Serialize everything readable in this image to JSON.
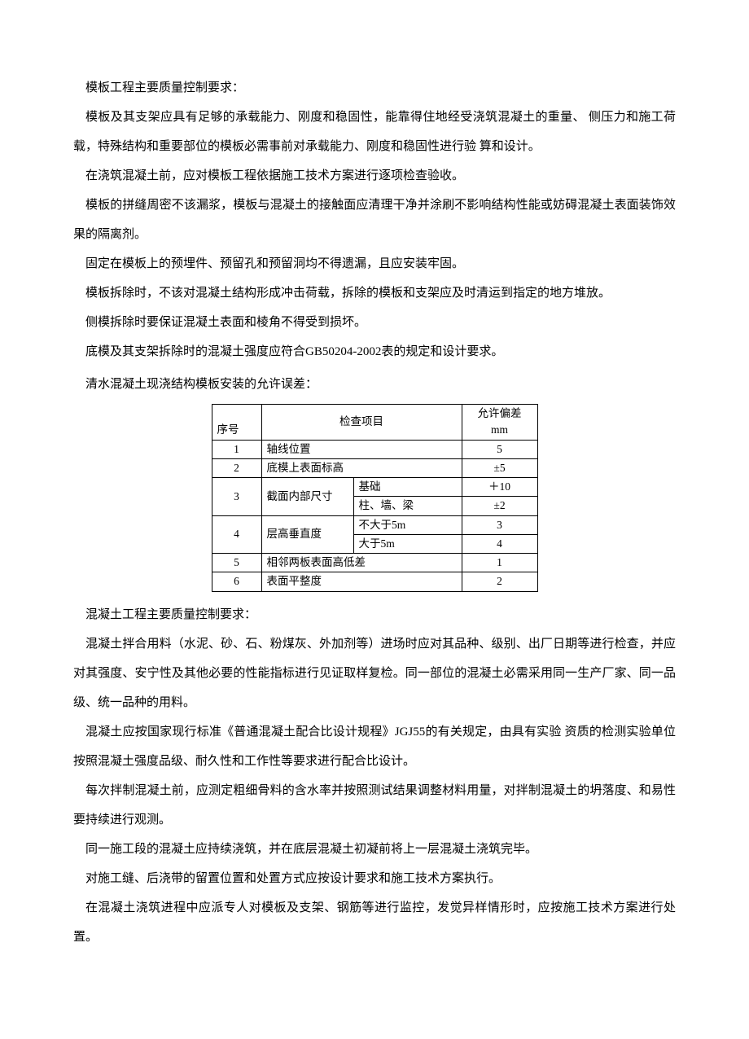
{
  "formwork": {
    "title": "模板工程主要质量控制要求：",
    "p1": "模板及其支架应具有足够的承载能力、刚度和稳固性，能靠得住地经受浇筑混凝土的重量、 侧压力和施工荷载，特殊结构和重要部位的模板必需事前对承载能力、刚度和稳固性进行验 算和设计。",
    "p2": "在浇筑混凝土前，应对模板工程依据施工技术方案进行逐项检查验收。",
    "p3": "模板的拼缝周密不该漏浆，模板与混凝土的接触面应清理干净并涂刷不影响结构性能或妨碍混凝土表面装饰效果的隔离剂。",
    "p4": "固定在模板上的预埋件、预留孔和预留洞均不得遗漏，且应安装牢固。",
    "p5": "模板拆除时，不该对混凝土结构形成冲击荷载，拆除的模板和支架应及时清运到指定的地方堆放。",
    "p6": "侧模拆除时要保证混凝土表面和棱角不得受到损坏。",
    "p7": "底模及其支架拆除时的混凝土强度应符合GB50204-2002表的规定和设计要求。",
    "caption": "清水混凝土现浇结构模板安装的允许误差："
  },
  "table": {
    "head": {
      "idx": "序号",
      "item": "检查项目",
      "tol_top": "允许偏差",
      "tol_unit": "mm"
    },
    "rows": [
      {
        "idx": "1",
        "item": "轴线位置",
        "tol": "5"
      },
      {
        "idx": "2",
        "item": "底模上表面标高",
        "tol": "±5"
      },
      {
        "idx": "3",
        "item": "截面内部尺寸",
        "subs": [
          {
            "label": "基础",
            "tol": "＋10"
          },
          {
            "label": "柱、墙、梁",
            "tol": "±2"
          }
        ]
      },
      {
        "idx": "4",
        "item": "层高垂直度",
        "subs": [
          {
            "label": "不大于5m",
            "tol": "3"
          },
          {
            "label": "大于5m",
            "tol": "4"
          }
        ]
      },
      {
        "idx": "5",
        "item": "相邻两板表面高低差",
        "tol": "1"
      },
      {
        "idx": "6",
        "item": "表面平整度",
        "tol": "2"
      }
    ]
  },
  "concrete": {
    "title": "混凝土工程主要质量控制要求：",
    "p1": "混凝土拌合用料（水泥、砂、石、粉煤灰、外加剂等）进场时应对其品种、级别、出厂日期等进行检查，并应对其强度、安宁性及其他必要的性能指标进行见证取样复检。同一部位的混凝土必需采用同一生产厂家、同一品级、统一品种的用料。",
    "p2": "混凝土应按国家现行标准《普通混凝土配合比设计规程》JGJ55的有关规定，由具有实验 资质的检测实验单位按照混凝土强度品级、耐久性和工作性等要求进行配合比设计。",
    "p3": "每次拌制混凝土前，应测定粗细骨料的含水率并按照测试结果调整材料用量，对拌制混凝土的坍落度、和易性要持续进行观测。",
    "p4": "同一施工段的混凝土应持续浇筑，并在底层混凝土初凝前将上一层混凝土浇筑完毕。",
    "p5": "对施工缝、后浇带的留置位置和处置方式应按设计要求和施工技术方案执行。",
    "p6": "在混凝土浇筑进程中应派专人对模板及支架、钢筋等进行监控，发觉异样情形时，应按施工技术方案进行处置。"
  }
}
